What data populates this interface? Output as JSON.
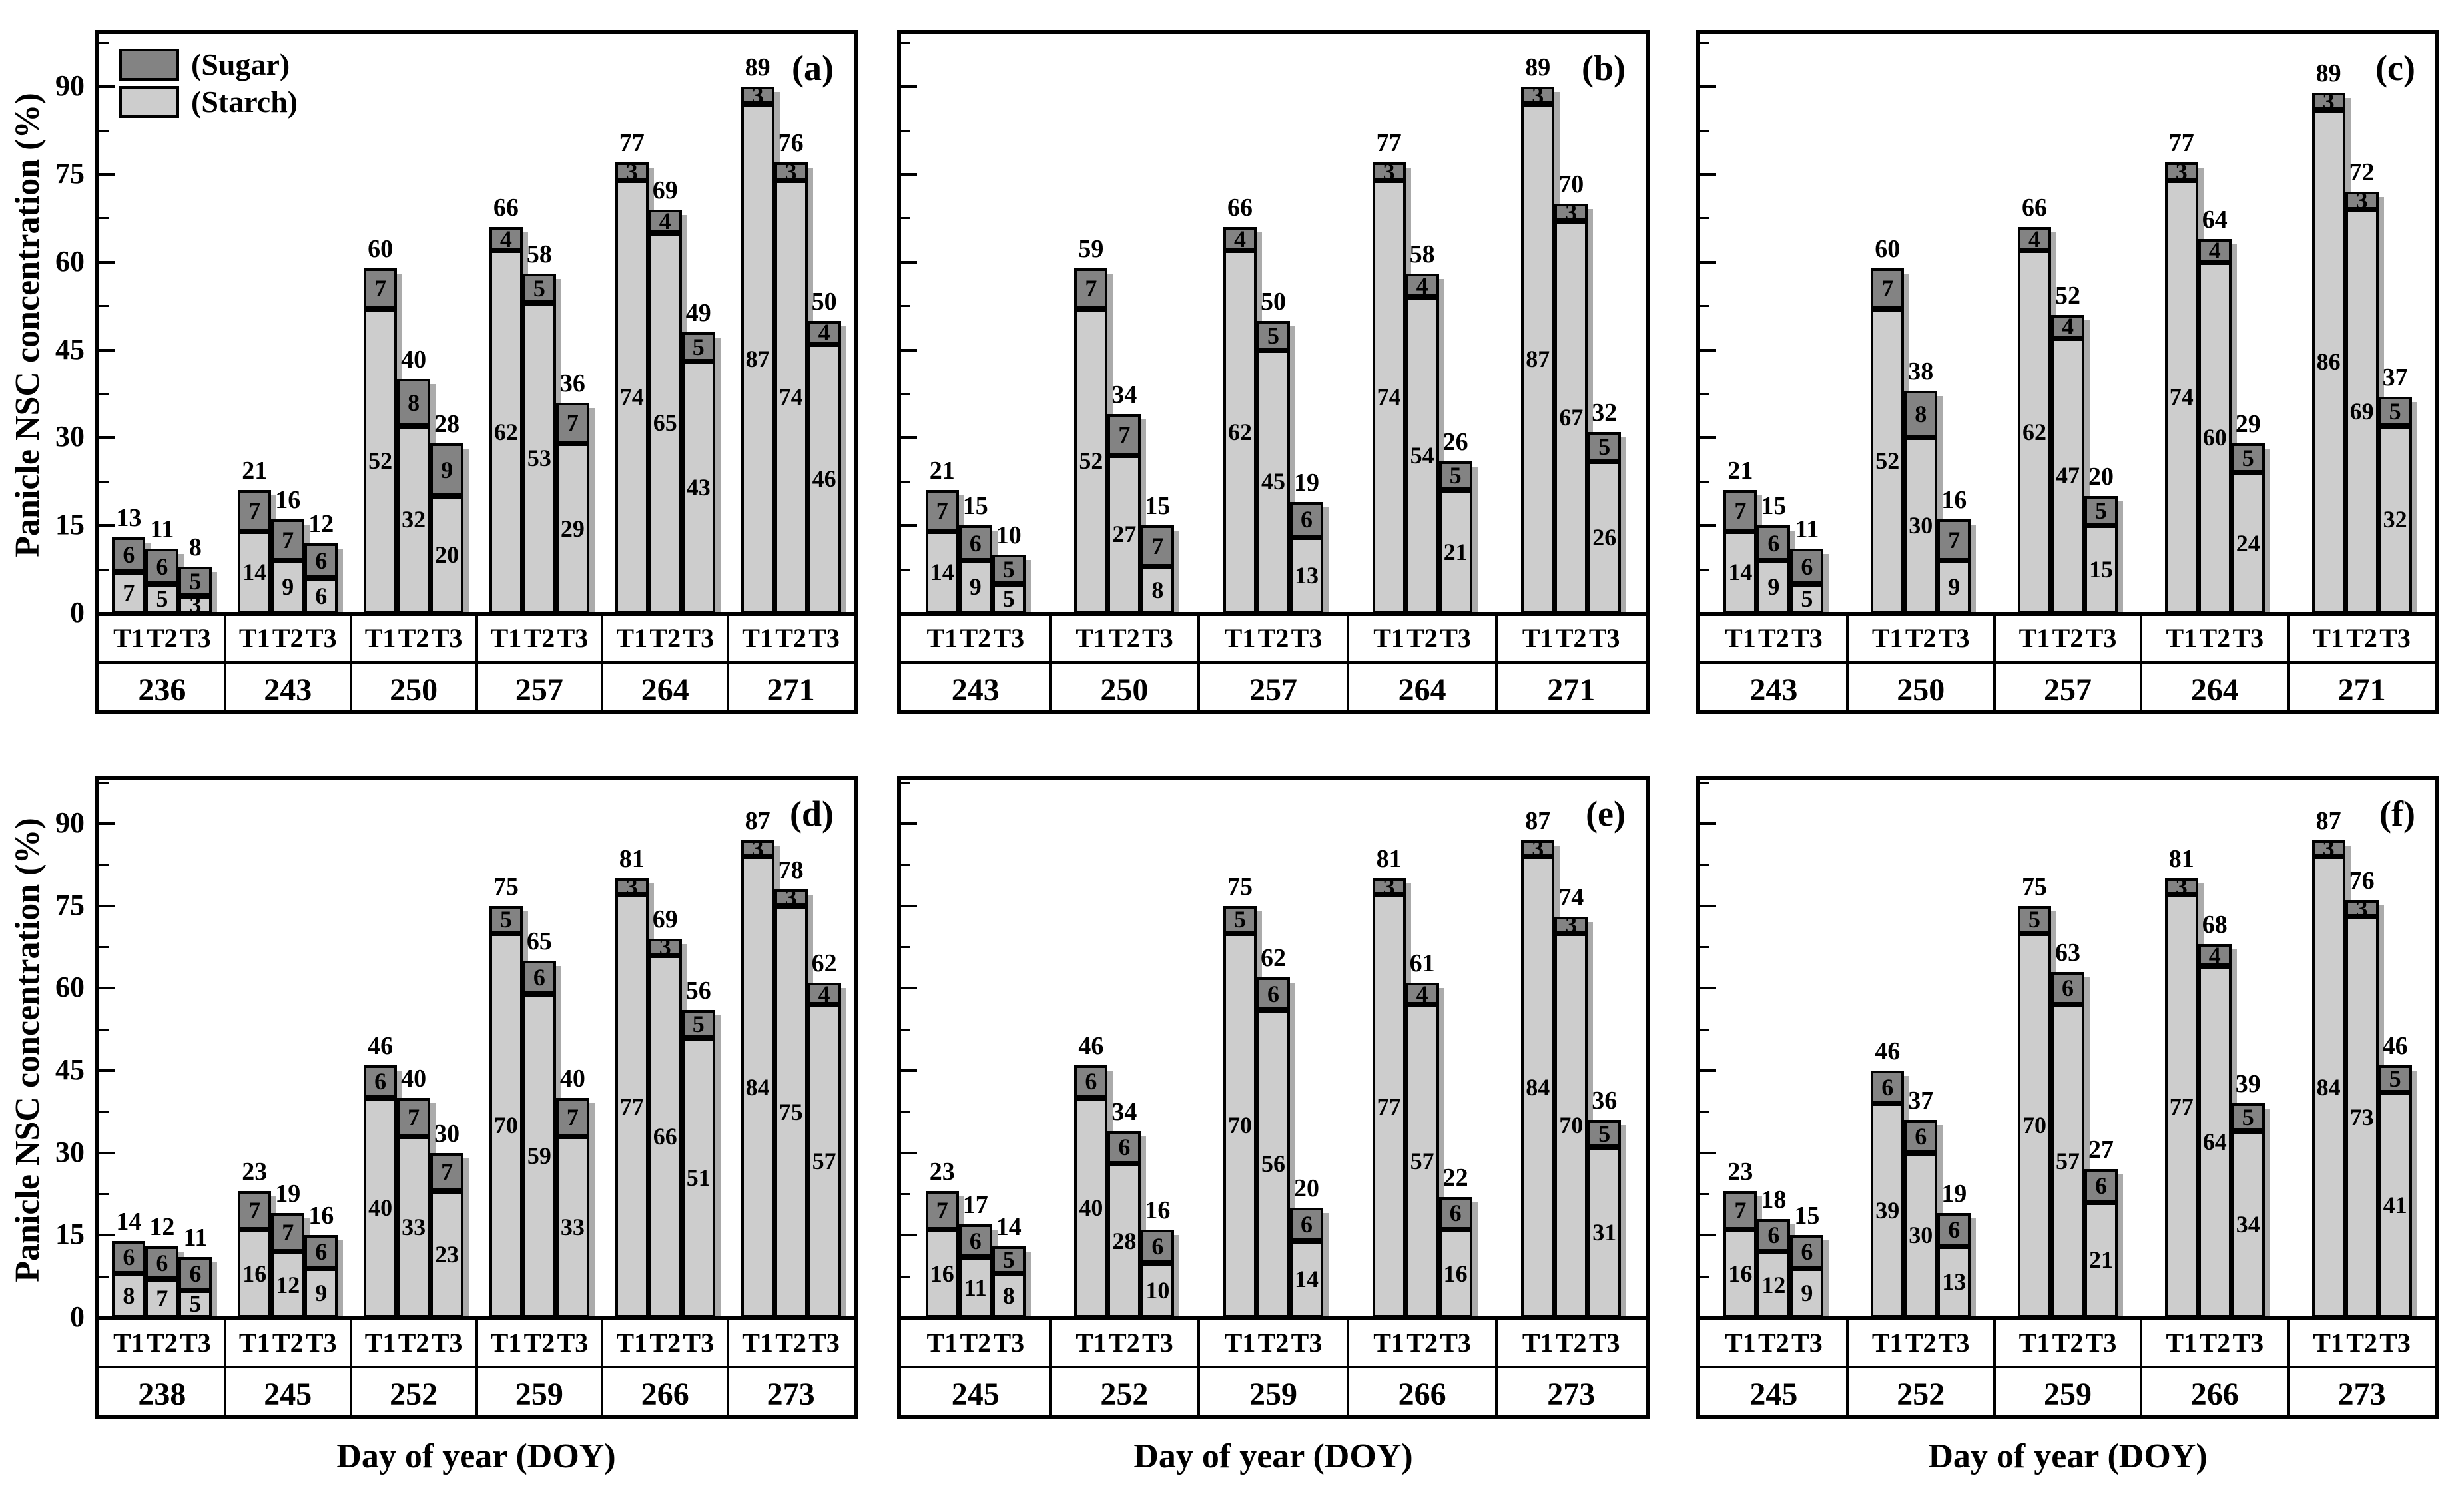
{
  "chart_data": {
    "type": "bar",
    "stacked": true,
    "series": [
      "Sugar",
      "Starch"
    ],
    "ylabel": "Panicle NSC concentration (%)",
    "xlabel": "Day of year (DOY)",
    "ylim": [
      0,
      90
    ],
    "y_ticks": [
      0,
      15,
      30,
      45,
      60,
      75,
      90
    ],
    "grid": false,
    "legend_position": "top-left of panel (a)",
    "treatments": [
      "T1",
      "T2",
      "T3"
    ],
    "legend": [
      {
        "label": "(Sugar)",
        "color": "#838383"
      },
      {
        "label": "(Starch)",
        "color": "#cdcdcd"
      }
    ],
    "colors": {
      "sugar": "#838383",
      "starch": "#cdcdcd",
      "outline": "#000000",
      "shadow": "#ababab"
    },
    "panels": [
      {
        "label": "(a)",
        "row": 0,
        "col": 0,
        "y_tick_labels": true,
        "legend": true,
        "groups": [
          {
            "doy": "236",
            "bars": [
              {
                "t": "T1",
                "total": 13,
                "sugar": 6,
                "starch": 7
              },
              {
                "t": "T2",
                "total": 11,
                "sugar": 6,
                "starch": 5
              },
              {
                "t": "T3",
                "total": 8,
                "sugar": 5,
                "starch": 3
              }
            ]
          },
          {
            "doy": "243",
            "bars": [
              {
                "t": "T1",
                "total": 21,
                "sugar": 7,
                "starch": 14
              },
              {
                "t": "T2",
                "total": 16,
                "sugar": 7,
                "starch": 9
              },
              {
                "t": "T3",
                "total": 12,
                "sugar": 6,
                "starch": 6
              }
            ]
          },
          {
            "doy": "250",
            "bars": [
              {
                "t": "T1",
                "total": 60,
                "sugar": 7,
                "starch": 52
              },
              {
                "t": "T2",
                "total": 40,
                "sugar": 8,
                "starch": 32
              },
              {
                "t": "T3",
                "total": 28,
                "sugar": 9,
                "starch": 20
              }
            ]
          },
          {
            "doy": "257",
            "bars": [
              {
                "t": "T1",
                "total": 66,
                "sugar": 4,
                "starch": 62
              },
              {
                "t": "T2",
                "total": 58,
                "sugar": 5,
                "starch": 53
              },
              {
                "t": "T3",
                "total": 36,
                "sugar": 7,
                "starch": 29
              }
            ]
          },
          {
            "doy": "264",
            "bars": [
              {
                "t": "T1",
                "total": 77,
                "sugar": 3,
                "starch": 74
              },
              {
                "t": "T2",
                "total": 69,
                "sugar": 4,
                "starch": 65
              },
              {
                "t": "T3",
                "total": 49,
                "sugar": 5,
                "starch": 43
              }
            ]
          },
          {
            "doy": "271",
            "bars": [
              {
                "t": "T1",
                "total": 89,
                "sugar": 3,
                "starch": 87
              },
              {
                "t": "T2",
                "total": 76,
                "sugar": 3,
                "starch": 74
              },
              {
                "t": "T3",
                "total": 50,
                "sugar": 4,
                "starch": 46
              }
            ]
          }
        ]
      },
      {
        "label": "(b)",
        "row": 0,
        "col": 1,
        "y_tick_labels": false,
        "legend": false,
        "groups": [
          {
            "doy": "243",
            "bars": [
              {
                "t": "T1",
                "total": 21,
                "sugar": 7,
                "starch": 14
              },
              {
                "t": "T2",
                "total": 15,
                "sugar": 6,
                "starch": 9
              },
              {
                "t": "T3",
                "total": 10,
                "sugar": 5,
                "starch": 5
              }
            ]
          },
          {
            "doy": "250",
            "bars": [
              {
                "t": "T1",
                "total": 59,
                "sugar": 7,
                "starch": 52
              },
              {
                "t": "T2",
                "total": 34,
                "sugar": 7,
                "starch": 27
              },
              {
                "t": "T3",
                "total": 15,
                "sugar": 7,
                "starch": 8
              }
            ]
          },
          {
            "doy": "257",
            "bars": [
              {
                "t": "T1",
                "total": 66,
                "sugar": 4,
                "starch": 62
              },
              {
                "t": "T2",
                "total": 50,
                "sugar": 5,
                "starch": 45
              },
              {
                "t": "T3",
                "total": 19,
                "sugar": 6,
                "starch": 13
              }
            ]
          },
          {
            "doy": "264",
            "bars": [
              {
                "t": "T1",
                "total": 77,
                "sugar": 3,
                "starch": 74
              },
              {
                "t": "T2",
                "total": 58,
                "sugar": 4,
                "starch": 54
              },
              {
                "t": "T3",
                "total": 26,
                "sugar": 5,
                "starch": 21
              }
            ]
          },
          {
            "doy": "271",
            "bars": [
              {
                "t": "T1",
                "total": 89,
                "sugar": 3,
                "starch": 87
              },
              {
                "t": "T2",
                "total": 70,
                "sugar": 3,
                "starch": 67
              },
              {
                "t": "T3",
                "total": 32,
                "sugar": 5,
                "starch": 26
              }
            ]
          }
        ]
      },
      {
        "label": "(c)",
        "row": 0,
        "col": 2,
        "y_tick_labels": false,
        "legend": false,
        "groups": [
          {
            "doy": "243",
            "bars": [
              {
                "t": "T1",
                "total": 21,
                "sugar": 7,
                "starch": 14
              },
              {
                "t": "T2",
                "total": 15,
                "sugar": 6,
                "starch": 9
              },
              {
                "t": "T3",
                "total": 11,
                "sugar": 6,
                "starch": 5
              }
            ]
          },
          {
            "doy": "250",
            "bars": [
              {
                "t": "T1",
                "total": 60,
                "sugar": 7,
                "starch": 52
              },
              {
                "t": "T2",
                "total": 38,
                "sugar": 8,
                "starch": 30
              },
              {
                "t": "T3",
                "total": 16,
                "sugar": 7,
                "starch": 9
              }
            ]
          },
          {
            "doy": "257",
            "bars": [
              {
                "t": "T1",
                "total": 66,
                "sugar": 4,
                "starch": 62
              },
              {
                "t": "T2",
                "total": 52,
                "sugar": 4,
                "starch": 47
              },
              {
                "t": "T3",
                "total": 20,
                "sugar": 5,
                "starch": 15
              }
            ]
          },
          {
            "doy": "264",
            "bars": [
              {
                "t": "T1",
                "total": 77,
                "sugar": 3,
                "starch": 74
              },
              {
                "t": "T2",
                "total": 64,
                "sugar": 4,
                "starch": 60
              },
              {
                "t": "T3",
                "total": 29,
                "sugar": 5,
                "starch": 24
              }
            ]
          },
          {
            "doy": "271",
            "bars": [
              {
                "t": "T1",
                "total": 89,
                "sugar": 3,
                "starch": 86
              },
              {
                "t": "T2",
                "total": 72,
                "sugar": 3,
                "starch": 69
              },
              {
                "t": "T3",
                "total": 37,
                "sugar": 5,
                "starch": 32
              }
            ]
          }
        ]
      },
      {
        "label": "(d)",
        "row": 1,
        "col": 0,
        "y_tick_labels": true,
        "legend": false,
        "groups": [
          {
            "doy": "238",
            "bars": [
              {
                "t": "T1",
                "total": 14,
                "sugar": 6,
                "starch": 8
              },
              {
                "t": "T2",
                "total": 12,
                "sugar": 6,
                "starch": 7
              },
              {
                "t": "T3",
                "total": 11,
                "sugar": 6,
                "starch": 5
              }
            ]
          },
          {
            "doy": "245",
            "bars": [
              {
                "t": "T1",
                "total": 23,
                "sugar": 7,
                "starch": 16
              },
              {
                "t": "T2",
                "total": 19,
                "sugar": 7,
                "starch": 12
              },
              {
                "t": "T3",
                "total": 16,
                "sugar": 6,
                "starch": 9
              }
            ]
          },
          {
            "doy": "252",
            "bars": [
              {
                "t": "T1",
                "total": 46,
                "sugar": 6,
                "starch": 40
              },
              {
                "t": "T2",
                "total": 40,
                "sugar": 7,
                "starch": 33
              },
              {
                "t": "T3",
                "total": 30,
                "sugar": 7,
                "starch": 23
              }
            ]
          },
          {
            "doy": "259",
            "bars": [
              {
                "t": "T1",
                "total": 75,
                "sugar": 5,
                "starch": 70
              },
              {
                "t": "T2",
                "total": 65,
                "sugar": 6,
                "starch": 59
              },
              {
                "t": "T3",
                "total": 40,
                "sugar": 7,
                "starch": 33
              }
            ]
          },
          {
            "doy": "266",
            "bars": [
              {
                "t": "T1",
                "total": 81,
                "sugar": 3,
                "starch": 77
              },
              {
                "t": "T2",
                "total": 69,
                "sugar": 3,
                "starch": 66
              },
              {
                "t": "T3",
                "total": 56,
                "sugar": 5,
                "starch": 51
              }
            ]
          },
          {
            "doy": "273",
            "bars": [
              {
                "t": "T1",
                "total": 87,
                "sugar": 3,
                "starch": 84
              },
              {
                "t": "T2",
                "total": 78,
                "sugar": 3,
                "starch": 75
              },
              {
                "t": "T3",
                "total": 62,
                "sugar": 4,
                "starch": 57
              }
            ]
          }
        ]
      },
      {
        "label": "(e)",
        "row": 1,
        "col": 1,
        "y_tick_labels": false,
        "legend": false,
        "groups": [
          {
            "doy": "245",
            "bars": [
              {
                "t": "T1",
                "total": 23,
                "sugar": 7,
                "starch": 16
              },
              {
                "t": "T2",
                "total": 17,
                "sugar": 6,
                "starch": 11
              },
              {
                "t": "T3",
                "total": 14,
                "sugar": 5,
                "starch": 8
              }
            ]
          },
          {
            "doy": "252",
            "bars": [
              {
                "t": "T1",
                "total": 46,
                "sugar": 6,
                "starch": 40
              },
              {
                "t": "T2",
                "total": 34,
                "sugar": 6,
                "starch": 28
              },
              {
                "t": "T3",
                "total": 16,
                "sugar": 6,
                "starch": 10
              }
            ]
          },
          {
            "doy": "259",
            "bars": [
              {
                "t": "T1",
                "total": 75,
                "sugar": 5,
                "starch": 70
              },
              {
                "t": "T2",
                "total": 62,
                "sugar": 6,
                "starch": 56
              },
              {
                "t": "T3",
                "total": 20,
                "sugar": 6,
                "starch": 14
              }
            ]
          },
          {
            "doy": "266",
            "bars": [
              {
                "t": "T1",
                "total": 81,
                "sugar": 3,
                "starch": 77
              },
              {
                "t": "T2",
                "total": 61,
                "sugar": 4,
                "starch": 57
              },
              {
                "t": "T3",
                "total": 22,
                "sugar": 6,
                "starch": 16
              }
            ]
          },
          {
            "doy": "273",
            "bars": [
              {
                "t": "T1",
                "total": 87,
                "sugar": 3,
                "starch": 84
              },
              {
                "t": "T2",
                "total": 74,
                "sugar": 3,
                "starch": 70
              },
              {
                "t": "T3",
                "total": 36,
                "sugar": 5,
                "starch": 31
              }
            ]
          }
        ]
      },
      {
        "label": "(f)",
        "row": 1,
        "col": 2,
        "y_tick_labels": false,
        "legend": false,
        "groups": [
          {
            "doy": "245",
            "bars": [
              {
                "t": "T1",
                "total": 23,
                "sugar": 7,
                "starch": 16
              },
              {
                "t": "T2",
                "total": 18,
                "sugar": 6,
                "starch": 12
              },
              {
                "t": "T3",
                "total": 15,
                "sugar": 6,
                "starch": 9
              }
            ]
          },
          {
            "doy": "252",
            "bars": [
              {
                "t": "T1",
                "total": 46,
                "sugar": 6,
                "starch": 39
              },
              {
                "t": "T2",
                "total": 37,
                "sugar": 6,
                "starch": 30
              },
              {
                "t": "T3",
                "total": 19,
                "sugar": 6,
                "starch": 13
              }
            ]
          },
          {
            "doy": "259",
            "bars": [
              {
                "t": "T1",
                "total": 75,
                "sugar": 5,
                "starch": 70
              },
              {
                "t": "T2",
                "total": 63,
                "sugar": 6,
                "starch": 57
              },
              {
                "t": "T3",
                "total": 27,
                "sugar": 6,
                "starch": 21
              }
            ]
          },
          {
            "doy": "266",
            "bars": [
              {
                "t": "T1",
                "total": 81,
                "sugar": 3,
                "starch": 77
              },
              {
                "t": "T2",
                "total": 68,
                "sugar": 4,
                "starch": 64
              },
              {
                "t": "T3",
                "total": 39,
                "sugar": 5,
                "starch": 34
              }
            ]
          },
          {
            "doy": "273",
            "bars": [
              {
                "t": "T1",
                "total": 87,
                "sugar": 3,
                "starch": 84
              },
              {
                "t": "T2",
                "total": 76,
                "sugar": 3,
                "starch": 73
              },
              {
                "t": "T3",
                "total": 46,
                "sugar": 5,
                "starch": 41
              }
            ]
          }
        ]
      }
    ]
  }
}
